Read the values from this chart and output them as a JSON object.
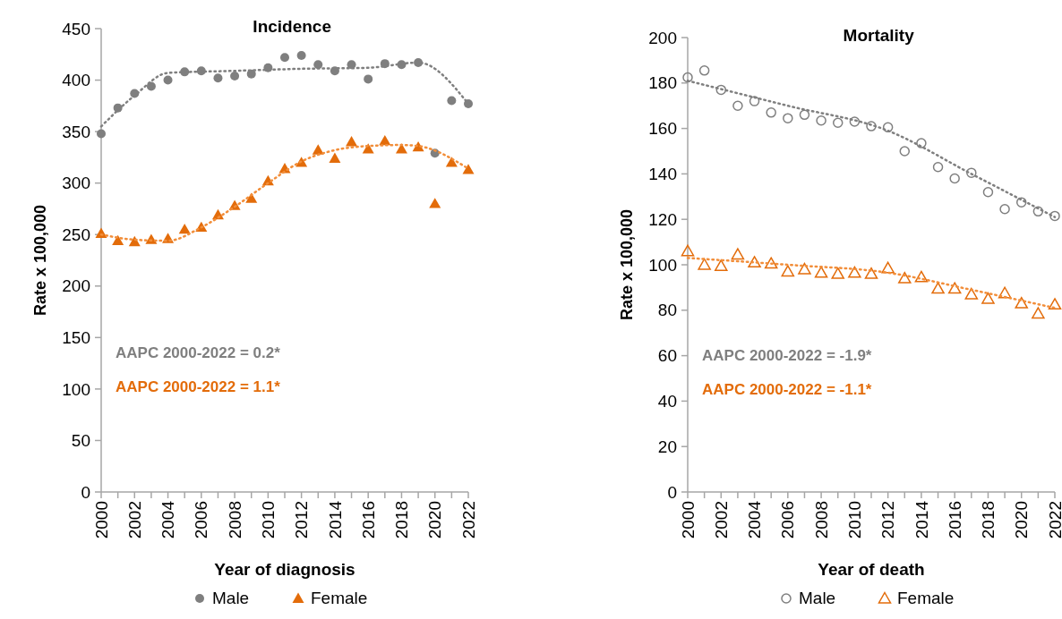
{
  "chart_data": [
    {
      "type": "scatter",
      "title": "Incidence",
      "xlabel": "Year of diagnosis",
      "ylabel": "Rate x 100,000",
      "x": [
        2000,
        2001,
        2002,
        2003,
        2004,
        2005,
        2006,
        2007,
        2008,
        2009,
        2010,
        2011,
        2012,
        2013,
        2014,
        2015,
        2016,
        2017,
        2018,
        2019,
        2020,
        2021,
        2022
      ],
      "xlim": [
        2000,
        2022
      ],
      "xticks": [
        2000,
        {
          "value": 2001,
          "label": null
        },
        2002,
        {
          "value": 2003,
          "label": null
        },
        2004,
        {
          "value": 2005,
          "label": null
        },
        2006,
        {
          "value": 2007,
          "label": null
        },
        2008,
        {
          "value": 2009,
          "label": null
        },
        2010,
        {
          "value": 2011,
          "label": null
        },
        2012,
        {
          "value": 2013,
          "label": null
        },
        2014,
        {
          "value": 2015,
          "label": null
        },
        2016,
        {
          "value": 2017,
          "label": null
        },
        2018,
        {
          "value": 2019,
          "label": null
        },
        2020,
        {
          "value": 2021,
          "label": null
        },
        2022
      ],
      "ylim": [
        0,
        450
      ],
      "yticks": [
        0,
        50,
        100,
        150,
        200,
        250,
        300,
        350,
        400,
        450
      ],
      "grid": false,
      "legend": "bottom",
      "series": [
        {
          "name": "Male",
          "color": "#7f7f7f",
          "marker": "circle",
          "values": [
            348,
            373,
            387,
            394,
            400,
            408,
            409,
            402,
            404,
            406,
            412,
            422,
            424,
            415,
            409,
            415,
            401,
            416,
            415,
            417,
            329,
            380,
            377
          ]
        },
        {
          "name": "Female",
          "color": "#e36c0a",
          "marker": "triangle",
          "values": [
            251,
            244,
            243,
            245,
            246,
            255,
            257,
            269,
            278,
            285,
            302,
            314,
            320,
            332,
            324,
            340,
            333,
            341,
            333,
            335,
            280,
            320,
            313
          ]
        },
        {
          "type": "line",
          "color": "#7f7f7f",
          "line_style": "dotted",
          "marker": "none",
          "x": [
            2000,
            2002,
            2004,
            2008,
            2012,
            2016,
            2019,
            2022
          ],
          "values": [
            355,
            385,
            407,
            409,
            411,
            412,
            417,
            377
          ]
        },
        {
          "type": "line",
          "color": "#f28e3a",
          "line_style": "dotted",
          "marker": "none",
          "x": [
            2000,
            2002,
            2004,
            2006,
            2008,
            2010,
            2012,
            2014,
            2016,
            2018,
            2019,
            2022
          ],
          "values": [
            250,
            245,
            244,
            257,
            277,
            300,
            321,
            332,
            336,
            337,
            336,
            314
          ]
        }
      ],
      "annotations": [
        "AAPC 2000-2022 = 0.2*",
        "AAPC 2000-2022 = 1.1*"
      ]
    },
    {
      "type": "scatter",
      "title": "Mortality",
      "xlabel": "Year of death",
      "ylabel": "Rate x 100,000",
      "x": [
        2000,
        2001,
        2002,
        2003,
        2004,
        2005,
        2006,
        2007,
        2008,
        2009,
        2010,
        2011,
        2012,
        2013,
        2014,
        2015,
        2016,
        2017,
        2018,
        2019,
        2020,
        2021,
        2022
      ],
      "xlim": [
        2000,
        2022
      ],
      "xticks": [
        2000,
        {
          "value": 2001,
          "label": null
        },
        2002,
        {
          "value": 2003,
          "label": null
        },
        2004,
        {
          "value": 2005,
          "label": null
        },
        2006,
        {
          "value": 2007,
          "label": null
        },
        2008,
        {
          "value": 2009,
          "label": null
        },
        2010,
        {
          "value": 2011,
          "label": null
        },
        2012,
        {
          "value": 2013,
          "label": null
        },
        2014,
        {
          "value": 2015,
          "label": null
        },
        2016,
        {
          "value": 2017,
          "label": null
        },
        2018,
        {
          "value": 2019,
          "label": null
        },
        2020,
        {
          "value": 2021,
          "label": null
        },
        2022
      ],
      "ylim": [
        0,
        200
      ],
      "yticks": [
        0,
        20,
        40,
        60,
        80,
        100,
        120,
        140,
        160,
        180,
        200
      ],
      "grid": false,
      "legend": "bottom",
      "series": [
        {
          "name": "Male",
          "color": "#7f7f7f",
          "marker": "circle",
          "values": [
            182.5,
            185.5,
            177,
            170,
            172,
            167,
            164.5,
            166,
            163.5,
            162.5,
            163,
            161,
            160.5,
            150,
            153.5,
            143,
            138,
            140.5,
            132,
            124.5,
            127.5,
            123.5,
            121.5
          ]
        },
        {
          "name": "Female",
          "color": "#e36c0a",
          "marker": "triangle",
          "values": [
            106,
            100,
            99.5,
            104.5,
            101,
            100.5,
            97,
            98,
            96.5,
            96,
            96.5,
            96,
            98.5,
            94,
            94.5,
            89.5,
            89.5,
            87,
            85,
            87.5,
            83,
            78.5,
            82.5
          ]
        },
        {
          "type": "line",
          "color": "#7f7f7f",
          "line_style": "dotted",
          "marker": "none",
          "x": [
            2000,
            2006,
            2012,
            2017,
            2022
          ],
          "values": [
            181,
            170,
            159,
            140,
            121
          ]
        },
        {
          "type": "line",
          "color": "#f28e3a",
          "line_style": "dotted",
          "marker": "none",
          "x": [
            2000,
            2006,
            2012,
            2017,
            2022
          ],
          "values": [
            103,
            100,
            96.5,
            89,
            81
          ]
        }
      ],
      "annotations": [
        "AAPC 2000-2022 = -1.9*",
        "AAPC 2000-2022 = -1.1*"
      ]
    }
  ]
}
